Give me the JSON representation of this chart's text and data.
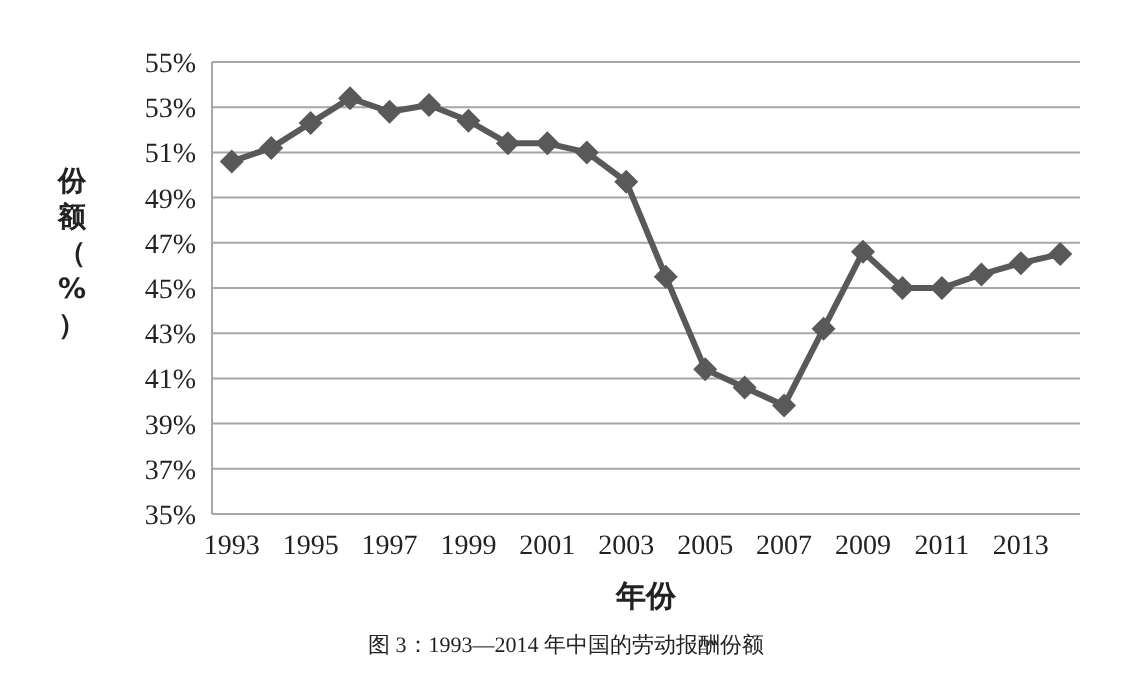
{
  "chart_data": {
    "type": "line",
    "xlabel": "年份",
    "ylabel": "份额（%）",
    "annotations": [
      "图 3：1993—2014 年中国的劳动报酬份额"
    ],
    "categories": [
      "1993",
      null,
      "1995",
      null,
      "1997",
      null,
      "1999",
      null,
      "2001",
      null,
      "2003",
      null,
      "2005",
      null,
      "2007",
      null,
      "2009",
      null,
      "2011",
      null,
      "2013",
      null
    ],
    "series": [
      {
        "color": "#595959",
        "values": [
          50.6,
          51.2,
          52.3,
          53.4,
          52.8,
          53.1,
          52.4,
          51.4,
          51.4,
          51.0,
          49.7,
          45.5,
          41.4,
          40.6,
          39.8,
          43.2,
          46.6,
          45.0,
          45.0,
          45.6,
          46.1,
          46.5
        ]
      }
    ],
    "ylim": [
      35,
      55
    ],
    "yticks": [
      {
        "value": 35,
        "label": "35%"
      },
      {
        "value": 37,
        "label": "37%"
      },
      {
        "value": 39,
        "label": "39%"
      },
      {
        "value": 41,
        "label": "41%"
      },
      {
        "value": 43,
        "label": "43%"
      },
      {
        "value": 45,
        "label": "45%"
      },
      {
        "value": 47,
        "label": "47%"
      },
      {
        "value": 49,
        "label": "49%"
      },
      {
        "value": 51,
        "label": "51%"
      },
      {
        "value": 53,
        "label": "53%"
      },
      {
        "value": 55,
        "label": "55%"
      }
    ],
    "grid": "y",
    "marker": "diamond",
    "line_style": "solid"
  }
}
